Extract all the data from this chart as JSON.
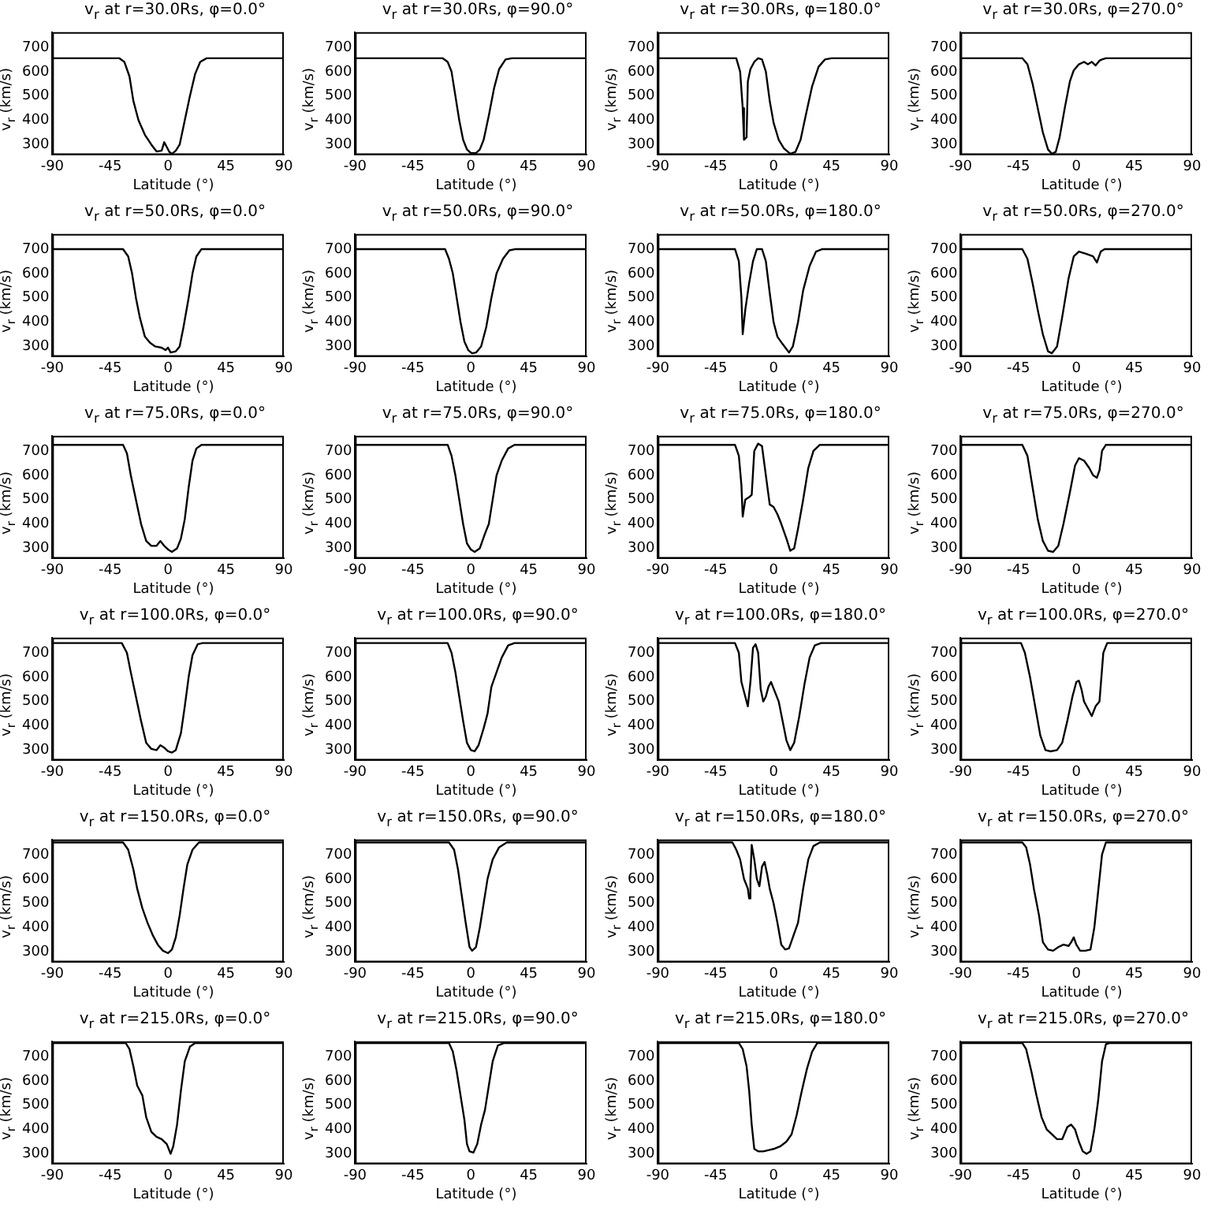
{
  "chart_data": [
    {
      "type": "line",
      "title": "v$_{r}$ at r=30.0Rs, φ=0.0°",
      "xlabel": "Latitude (°)",
      "ylabel": "v$_{r}$ (km/s)",
      "xlim": [
        -90,
        90
      ],
      "ylim": [
        258,
        762
      ],
      "xticks": [
        -90,
        -45,
        0,
        45,
        90
      ],
      "yticks": [
        300,
        400,
        500,
        600,
        700
      ],
      "series": [
        {
          "color": "#000000",
          "x": [
            -90,
            -38,
            -34,
            -30,
            -27,
            -23,
            -18,
            -13,
            -9,
            -5,
            -3,
            -1,
            1,
            3,
            6,
            9,
            13,
            17,
            21,
            25,
            30,
            90
          ],
          "values": [
            655,
            655,
            640,
            580,
            480,
            400,
            340,
            300,
            272,
            275,
            310,
            290,
            270,
            262,
            275,
            300,
            400,
            500,
            590,
            640,
            655,
            655
          ]
        }
      ]
    },
    {
      "type": "line",
      "title": "v$_{r}$ at r=30.0Rs, φ=90.0°",
      "xlabel": "Latitude (°)",
      "ylabel": "v$_{r}$ (km/s)",
      "xlim": [
        -90,
        90
      ],
      "ylim": [
        258,
        762
      ],
      "xticks": [
        -90,
        -45,
        0,
        45,
        90
      ],
      "yticks": [
        300,
        400,
        500,
        600,
        700
      ],
      "series": [
        {
          "color": "#000000",
          "x": [
            -90,
            -22,
            -18,
            -15,
            -12,
            -9,
            -6,
            -3,
            0,
            4,
            7,
            10,
            14,
            18,
            22,
            27,
            32,
            90
          ],
          "values": [
            655,
            655,
            640,
            600,
            500,
            400,
            320,
            280,
            265,
            265,
            280,
            320,
            420,
            530,
            610,
            650,
            655,
            655
          ]
        }
      ]
    },
    {
      "type": "line",
      "title": "v$_{r}$ at r=30.0Rs, φ=180.0°",
      "xlabel": "Latitude (°)",
      "ylabel": "v$_{r}$ (km/s)",
      "xlim": [
        -90,
        90
      ],
      "ylim": [
        258,
        762
      ],
      "xticks": [
        -90,
        -45,
        0,
        45,
        90
      ],
      "yticks": [
        300,
        400,
        500,
        600,
        700
      ],
      "series": [
        {
          "color": "#000000",
          "x": [
            -90,
            -29,
            -26,
            -24,
            -23,
            -21,
            -20,
            -18,
            -15,
            -12,
            -9,
            -6,
            -3,
            0,
            4,
            8,
            13,
            17,
            21,
            25,
            30,
            35,
            40,
            45,
            90
          ],
          "values": [
            655,
            655,
            600,
            450,
            320,
            330,
            560,
            610,
            640,
            655,
            650,
            600,
            480,
            390,
            320,
            285,
            262,
            270,
            320,
            420,
            540,
            620,
            650,
            655,
            655
          ]
        }
      ]
    },
    {
      "type": "line",
      "title": "v$_{r}$ at r=30.0Rs, φ=270.0°",
      "xlabel": "Latitude (°)",
      "ylabel": "v$_{r}$ (km/s)",
      "xlim": [
        -90,
        90
      ],
      "ylim": [
        258,
        762
      ],
      "xticks": [
        -90,
        -45,
        0,
        45,
        90
      ],
      "yticks": [
        300,
        400,
        500,
        600,
        700
      ],
      "series": [
        {
          "color": "#000000",
          "x": [
            -90,
            -42,
            -38,
            -34,
            -30,
            -26,
            -22,
            -19,
            -16,
            -13,
            -9,
            -5,
            -2,
            2,
            6,
            9,
            12,
            15,
            18,
            20,
            23,
            90
          ],
          "values": [
            655,
            655,
            630,
            550,
            450,
            350,
            280,
            262,
            270,
            330,
            450,
            560,
            605,
            630,
            640,
            630,
            640,
            625,
            645,
            650,
            655,
            655
          ]
        }
      ]
    },
    {
      "type": "line",
      "title": "v$_{r}$ at r=50.0Rs, φ=0.0°",
      "xlabel": "Latitude (°)",
      "ylabel": "v$_{r}$ (km/s)",
      "xlim": [
        -90,
        90
      ],
      "ylim": [
        258,
        762
      ],
      "xticks": [
        -90,
        -45,
        0,
        45,
        90
      ],
      "yticks": [
        300,
        400,
        500,
        600,
        700
      ],
      "series": [
        {
          "color": "#000000",
          "x": [
            -90,
            -35,
            -31,
            -28,
            -25,
            -22,
            -18,
            -14,
            -10,
            -5,
            -2,
            0,
            2,
            6,
            9,
            12,
            16,
            19,
            22,
            26,
            90
          ],
          "values": [
            700,
            700,
            670,
            600,
            500,
            420,
            340,
            315,
            300,
            295,
            285,
            295,
            275,
            280,
            300,
            380,
            500,
            600,
            670,
            700,
            700
          ]
        }
      ]
    },
    {
      "type": "line",
      "title": "v$_{r}$ at r=50.0Rs, φ=90.0°",
      "xlabel": "Latitude (°)",
      "ylabel": "v$_{r}$ (km/s)",
      "xlim": [
        -90,
        90
      ],
      "ylim": [
        258,
        762
      ],
      "xticks": [
        -90,
        -45,
        0,
        45,
        90
      ],
      "yticks": [
        300,
        400,
        500,
        600,
        700
      ],
      "series": [
        {
          "color": "#000000",
          "x": [
            -90,
            -20,
            -17,
            -14,
            -11,
            -8,
            -5,
            -2,
            1,
            4,
            8,
            12,
            16,
            20,
            25,
            30,
            35,
            90
          ],
          "values": [
            700,
            700,
            660,
            600,
            500,
            400,
            320,
            285,
            272,
            275,
            300,
            380,
            500,
            600,
            660,
            695,
            700,
            700
          ]
        }
      ]
    },
    {
      "type": "line",
      "title": "v$_{r}$ at r=50.0Rs, φ=180.0°",
      "xlabel": "Latitude (°)",
      "ylabel": "v$_{r}$ (km/s)",
      "xlim": [
        -90,
        90
      ],
      "ylim": [
        258,
        762
      ],
      "xticks": [
        -90,
        -45,
        0,
        45,
        90
      ],
      "yticks": [
        300,
        400,
        500,
        600,
        700
      ],
      "series": [
        {
          "color": "#000000",
          "x": [
            -90,
            -30,
            -27,
            -25,
            -24,
            -22,
            -19,
            -16,
            -13,
            -9,
            -6,
            -3,
            0,
            3,
            7,
            12,
            15,
            19,
            23,
            28,
            33,
            38,
            90
          ],
          "values": [
            700,
            700,
            650,
            500,
            350,
            450,
            560,
            650,
            700,
            700,
            650,
            520,
            400,
            340,
            310,
            275,
            300,
            400,
            530,
            630,
            690,
            700,
            700
          ]
        }
      ]
    },
    {
      "type": "line",
      "title": "v$_{r}$ at r=50.0Rs, φ=270.0°",
      "xlabel": "Latitude (°)",
      "ylabel": "v$_{r}$ (km/s)",
      "xlim": [
        -90,
        90
      ],
      "ylim": [
        258,
        762
      ],
      "xticks": [
        -90,
        -45,
        0,
        45,
        90
      ],
      "yticks": [
        300,
        400,
        500,
        600,
        700
      ],
      "series": [
        {
          "color": "#000000",
          "x": [
            -90,
            -42,
            -38,
            -34,
            -30,
            -26,
            -22,
            -19,
            -15,
            -11,
            -6,
            -2,
            2,
            8,
            13,
            16,
            19,
            22,
            90
          ],
          "values": [
            700,
            700,
            660,
            560,
            450,
            350,
            280,
            272,
            300,
            420,
            580,
            670,
            690,
            680,
            670,
            645,
            690,
            700,
            700
          ]
        }
      ]
    },
    {
      "type": "line",
      "title": "v$_{r}$ at r=75.0Rs, φ=0.0°",
      "xlabel": "Latitude (°)",
      "ylabel": "v$_{r}$ (km/s)",
      "xlim": [
        -90,
        90
      ],
      "ylim": [
        258,
        762
      ],
      "xticks": [
        -90,
        -45,
        0,
        45,
        90
      ],
      "yticks": [
        300,
        400,
        500,
        600,
        700
      ],
      "series": [
        {
          "color": "#000000",
          "x": [
            -90,
            -35,
            -32,
            -29,
            -25,
            -21,
            -17,
            -13,
            -9,
            -6,
            -3,
            0,
            3,
            7,
            10,
            13,
            16,
            19,
            22,
            26,
            90
          ],
          "values": [
            725,
            725,
            690,
            600,
            500,
            400,
            330,
            310,
            310,
            330,
            310,
            295,
            285,
            300,
            340,
            420,
            550,
            660,
            710,
            725,
            725
          ]
        }
      ]
    },
    {
      "type": "line",
      "title": "v$_{r}$ at r=75.0Rs, φ=90.0°",
      "xlabel": "Latitude (°)",
      "ylabel": "v$_{r}$ (km/s)",
      "xlim": [
        -90,
        90
      ],
      "ylim": [
        258,
        762
      ],
      "xticks": [
        -90,
        -45,
        0,
        45,
        90
      ],
      "yticks": [
        300,
        400,
        500,
        600,
        700
      ],
      "series": [
        {
          "color": "#000000",
          "x": [
            -90,
            -18,
            -15,
            -12,
            -9,
            -6,
            -3,
            0,
            3,
            7,
            11,
            14,
            17,
            20,
            24,
            29,
            34,
            90
          ],
          "values": [
            725,
            725,
            680,
            600,
            500,
            400,
            320,
            295,
            285,
            300,
            360,
            400,
            500,
            600,
            660,
            710,
            725,
            725
          ]
        }
      ]
    },
    {
      "type": "line",
      "title": "v$_{r}$ at r=75.0Rs, φ=180.0°",
      "xlabel": "Latitude (°)",
      "ylabel": "v$_{r}$ (km/s)",
      "xlim": [
        -90,
        90
      ],
      "ylim": [
        258,
        762
      ],
      "xticks": [
        -90,
        -45,
        0,
        45,
        90
      ],
      "yticks": [
        300,
        400,
        500,
        600,
        700
      ],
      "series": [
        {
          "color": "#000000",
          "x": [
            -90,
            -30,
            -27,
            -25,
            -24,
            -22,
            -19,
            -17,
            -15,
            -12,
            -9,
            -6,
            -3,
            0,
            3,
            6,
            10,
            13,
            16,
            19,
            23,
            27,
            31,
            36,
            90
          ],
          "values": [
            725,
            725,
            680,
            560,
            430,
            500,
            510,
            520,
            700,
            730,
            720,
            600,
            480,
            470,
            440,
            400,
            340,
            290,
            300,
            380,
            500,
            630,
            700,
            725,
            725
          ]
        }
      ]
    },
    {
      "type": "line",
      "title": "v$_{r}$ at r=75.0Rs, φ=270.0°",
      "xlabel": "Latitude (°)",
      "ylabel": "v$_{r}$ (km/s)",
      "xlim": [
        -90,
        90
      ],
      "ylim": [
        258,
        762
      ],
      "xticks": [
        -90,
        -45,
        0,
        45,
        90
      ],
      "yticks": [
        300,
        400,
        500,
        600,
        700
      ],
      "series": [
        {
          "color": "#000000",
          "x": [
            -90,
            -42,
            -38,
            -34,
            -30,
            -26,
            -22,
            -18,
            -14,
            -10,
            -5,
            -1,
            2,
            6,
            10,
            13,
            16,
            18,
            20,
            23,
            90
          ],
          "values": [
            725,
            725,
            680,
            550,
            420,
            330,
            290,
            285,
            310,
            400,
            530,
            640,
            670,
            660,
            630,
            600,
            590,
            620,
            700,
            725,
            725
          ]
        }
      ]
    },
    {
      "type": "line",
      "title": "v$_{r}$ at r=100.0Rs, φ=0.0°",
      "xlabel": "Latitude (°)",
      "ylabel": "v$_{r}$ (km/s)",
      "xlim": [
        -90,
        90
      ],
      "ylim": [
        258,
        762
      ],
      "xticks": [
        -90,
        -45,
        0,
        45,
        90
      ],
      "yticks": [
        300,
        400,
        500,
        600,
        700
      ],
      "series": [
        {
          "color": "#000000",
          "x": [
            -90,
            -36,
            -32,
            -29,
            -25,
            -21,
            -17,
            -13,
            -9,
            -6,
            -3,
            0,
            3,
            6,
            10,
            13,
            16,
            19,
            23,
            27,
            90
          ],
          "values": [
            740,
            740,
            700,
            620,
            520,
            420,
            330,
            305,
            300,
            320,
            310,
            295,
            290,
            300,
            370,
            480,
            600,
            690,
            735,
            740,
            740
          ]
        }
      ]
    },
    {
      "type": "line",
      "title": "v$_{r}$ at r=100.0Rs, φ=90.0°",
      "xlabel": "Latitude (°)",
      "ylabel": "v$_{r}$ (km/s)",
      "xlim": [
        -90,
        90
      ],
      "ylim": [
        258,
        762
      ],
      "xticks": [
        -90,
        -45,
        0,
        45,
        90
      ],
      "yticks": [
        300,
        400,
        500,
        600,
        700
      ],
      "series": [
        {
          "color": "#000000",
          "x": [
            -90,
            -18,
            -15,
            -12,
            -9,
            -6,
            -3,
            0,
            3,
            6,
            10,
            13,
            16,
            20,
            24,
            29,
            34,
            90
          ],
          "values": [
            740,
            740,
            700,
            620,
            520,
            420,
            330,
            300,
            295,
            320,
            390,
            450,
            560,
            620,
            680,
            730,
            740,
            740
          ]
        }
      ]
    },
    {
      "type": "line",
      "title": "v$_{r}$ at r=100.0Rs, φ=180.0°",
      "xlabel": "Latitude (°)",
      "ylabel": "v$_{r}$ (km/s)",
      "xlim": [
        -90,
        90
      ],
      "ylim": [
        258,
        762
      ],
      "xticks": [
        -90,
        -45,
        0,
        45,
        90
      ],
      "yticks": [
        300,
        400,
        500,
        600,
        700
      ],
      "series": [
        {
          "color": "#000000",
          "x": [
            -90,
            -30,
            -27,
            -25,
            -22,
            -20,
            -18,
            -16,
            -14,
            -12,
            -10,
            -8,
            -6,
            -4,
            -2,
            1,
            4,
            7,
            10,
            13,
            16,
            20,
            24,
            28,
            32,
            37,
            90
          ],
          "values": [
            740,
            740,
            700,
            580,
            520,
            480,
            580,
            720,
            735,
            700,
            550,
            500,
            520,
            560,
            580,
            540,
            500,
            420,
            340,
            300,
            330,
            440,
            570,
            680,
            730,
            740,
            740
          ]
        }
      ]
    },
    {
      "type": "line",
      "title": "v$_{r}$ at r=100.0Rs, φ=270.0°",
      "xlabel": "Latitude (°)",
      "ylabel": "v$_{r}$ (km/s)",
      "xlim": [
        -90,
        90
      ],
      "ylim": [
        258,
        762
      ],
      "xticks": [
        -90,
        -45,
        0,
        45,
        90
      ],
      "yticks": [
        300,
        400,
        500,
        600,
        700
      ],
      "series": [
        {
          "color": "#000000",
          "x": [
            -90,
            -43,
            -40,
            -36,
            -32,
            -28,
            -24,
            -20,
            -15,
            -11,
            -7,
            -3,
            0,
            2,
            4,
            6,
            9,
            12,
            15,
            18,
            21,
            24,
            90
          ],
          "values": [
            740,
            740,
            700,
            600,
            480,
            360,
            300,
            295,
            300,
            330,
            420,
            520,
            580,
            585,
            550,
            500,
            470,
            440,
            480,
            500,
            700,
            740,
            740
          ]
        }
      ]
    },
    {
      "type": "line",
      "title": "v$_{r}$ at r=150.0Rs, φ=0.0°",
      "xlabel": "Latitude (°)",
      "ylabel": "v$_{r}$ (km/s)",
      "xlim": [
        -90,
        90
      ],
      "ylim": [
        258,
        762
      ],
      "xticks": [
        -90,
        -45,
        0,
        45,
        90
      ],
      "yticks": [
        300,
        400,
        500,
        600,
        700
      ],
      "series": [
        {
          "color": "#000000",
          "x": [
            -90,
            -35,
            -31,
            -27,
            -24,
            -20,
            -16,
            -12,
            -8,
            -4,
            0,
            3,
            6,
            9,
            12,
            15,
            19,
            24,
            90
          ],
          "values": [
            750,
            750,
            720,
            640,
            560,
            480,
            420,
            370,
            330,
            305,
            295,
            310,
            360,
            450,
            560,
            660,
            720,
            750,
            750
          ]
        }
      ]
    },
    {
      "type": "line",
      "title": "v$_{r}$ at r=150.0Rs, φ=90.0°",
      "xlabel": "Latitude (°)",
      "ylabel": "v$_{r}$ (km/s)",
      "xlim": [
        -90,
        90
      ],
      "ylim": [
        258,
        762
      ],
      "xticks": [
        -90,
        -45,
        0,
        45,
        90
      ],
      "yticks": [
        300,
        400,
        500,
        600,
        700
      ],
      "series": [
        {
          "color": "#000000",
          "x": [
            -90,
            -17,
            -13,
            -10,
            -7,
            -4,
            -1,
            1,
            4,
            7,
            10,
            13,
            17,
            22,
            28,
            90
          ],
          "values": [
            750,
            750,
            720,
            640,
            530,
            420,
            320,
            305,
            320,
            400,
            500,
            600,
            680,
            730,
            750,
            750
          ]
        }
      ]
    },
    {
      "type": "line",
      "title": "v$_{r}$ at r=150.0Rs, φ=180.0°",
      "xlabel": "Latitude (°)",
      "ylabel": "v$_{r}$ (km/s)",
      "xlim": [
        -90,
        90
      ],
      "ylim": [
        258,
        762
      ],
      "xticks": [
        -90,
        -45,
        0,
        45,
        90
      ],
      "yticks": [
        300,
        400,
        500,
        600,
        700
      ],
      "series": [
        {
          "color": "#000000",
          "x": [
            -90,
            -32,
            -29,
            -26,
            -23,
            -20,
            -19,
            -18,
            -17,
            -15,
            -13,
            -11,
            -9,
            -7,
            -5,
            -3,
            0,
            3,
            6,
            9,
            12,
            15,
            19,
            23,
            27,
            31,
            36,
            90
          ],
          "values": [
            750,
            750,
            720,
            680,
            600,
            560,
            520,
            600,
            740,
            680,
            600,
            570,
            650,
            670,
            620,
            560,
            500,
            420,
            330,
            310,
            315,
            360,
            420,
            560,
            680,
            735,
            750,
            750
          ]
        }
      ]
    },
    {
      "type": "line",
      "title": "v$_{r}$ at r=150.0Rs, φ=270.0°",
      "xlabel": "Latitude (°)",
      "ylabel": "v$_{r}$ (km/s)",
      "xlim": [
        -90,
        90
      ],
      "ylim": [
        258,
        762
      ],
      "xticks": [
        -90,
        -45,
        0,
        45,
        90
      ],
      "yticks": [
        300,
        400,
        500,
        600,
        700
      ],
      "series": [
        {
          "color": "#000000",
          "x": [
            -90,
            -42,
            -39,
            -36,
            -33,
            -29,
            -26,
            -22,
            -18,
            -14,
            -10,
            -6,
            -4,
            -2,
            0,
            3,
            7,
            11,
            14,
            17,
            20,
            23,
            90
          ],
          "values": [
            750,
            750,
            730,
            660,
            560,
            450,
            340,
            310,
            305,
            320,
            330,
            325,
            340,
            360,
            330,
            305,
            305,
            310,
            400,
            550,
            700,
            750,
            750
          ]
        }
      ]
    },
    {
      "type": "line",
      "title": "v$_{r}$ at r=215.0Rs, φ=0.0°",
      "xlabel": "Latitude (°)",
      "ylabel": "v$_{r}$ (km/s)",
      "xlim": [
        -90,
        90
      ],
      "ylim": [
        258,
        762
      ],
      "xticks": [
        -90,
        -45,
        0,
        45,
        90
      ],
      "yticks": [
        300,
        400,
        500,
        600,
        700
      ],
      "series": [
        {
          "color": "#000000",
          "x": [
            -90,
            -33,
            -30,
            -27,
            -24,
            -20,
            -17,
            -13,
            -9,
            -5,
            -1,
            2,
            4,
            7,
            10,
            13,
            17,
            21,
            90
          ],
          "values": [
            755,
            755,
            730,
            660,
            580,
            540,
            450,
            390,
            370,
            360,
            340,
            300,
            330,
            420,
            560,
            680,
            740,
            755,
            755
          ]
        }
      ]
    },
    {
      "type": "line",
      "title": "v$_{r}$ at r=215.0Rs, φ=90.0°",
      "xlabel": "Latitude (°)",
      "ylabel": "v$_{r}$ (km/s)",
      "xlim": [
        -90,
        90
      ],
      "ylim": [
        258,
        762
      ],
      "xticks": [
        -90,
        -45,
        0,
        45,
        90
      ],
      "yticks": [
        300,
        400,
        500,
        600,
        700
      ],
      "series": [
        {
          "color": "#000000",
          "x": [
            -90,
            -17,
            -14,
            -11,
            -8,
            -5,
            -3,
            -1,
            2,
            5,
            8,
            11,
            14,
            17,
            21,
            26,
            90
          ],
          "values": [
            755,
            755,
            720,
            640,
            540,
            440,
            340,
            310,
            305,
            340,
            420,
            480,
            580,
            680,
            745,
            755,
            755
          ]
        }
      ]
    },
    {
      "type": "line",
      "title": "v$_{r}$ at r=215.0Rs, φ=180.0°",
      "xlabel": "Latitude (°)",
      "ylabel": "v$_{r}$ (km/s)",
      "xlim": [
        -90,
        90
      ],
      "ylim": [
        258,
        762
      ],
      "xticks": [
        -90,
        -45,
        0,
        45,
        90
      ],
      "yticks": [
        300,
        400,
        500,
        600,
        700
      ],
      "series": [
        {
          "color": "#000000",
          "x": [
            -90,
            -27,
            -24,
            -21,
            -19,
            -17,
            -15,
            -12,
            -8,
            -4,
            0,
            5,
            10,
            14,
            18,
            22,
            26,
            30,
            34,
            90
          ],
          "values": [
            755,
            755,
            730,
            660,
            560,
            420,
            320,
            310,
            310,
            315,
            320,
            330,
            350,
            380,
            460,
            560,
            650,
            720,
            755,
            755
          ]
        }
      ]
    },
    {
      "type": "line",
      "title": "v$_{r}$ at r=215.0Rs, φ=270.0°",
      "xlabel": "Latitude (°)",
      "ylabel": "v$_{r}$ (km/s)",
      "xlim": [
        -90,
        90
      ],
      "ylim": [
        258,
        762
      ],
      "xticks": [
        -90,
        -45,
        0,
        45,
        90
      ],
      "yticks": [
        300,
        400,
        500,
        600,
        700
      ],
      "series": [
        {
          "color": "#000000",
          "x": [
            -90,
            -42,
            -39,
            -35,
            -31,
            -27,
            -23,
            -19,
            -15,
            -11,
            -7,
            -4,
            -1,
            2,
            5,
            8,
            11,
            14,
            17,
            20,
            23,
            26,
            90
          ],
          "values": [
            755,
            755,
            730,
            640,
            540,
            450,
            400,
            380,
            360,
            360,
            410,
            420,
            400,
            350,
            310,
            300,
            310,
            400,
            520,
            680,
            750,
            755,
            755
          ]
        }
      ]
    }
  ]
}
